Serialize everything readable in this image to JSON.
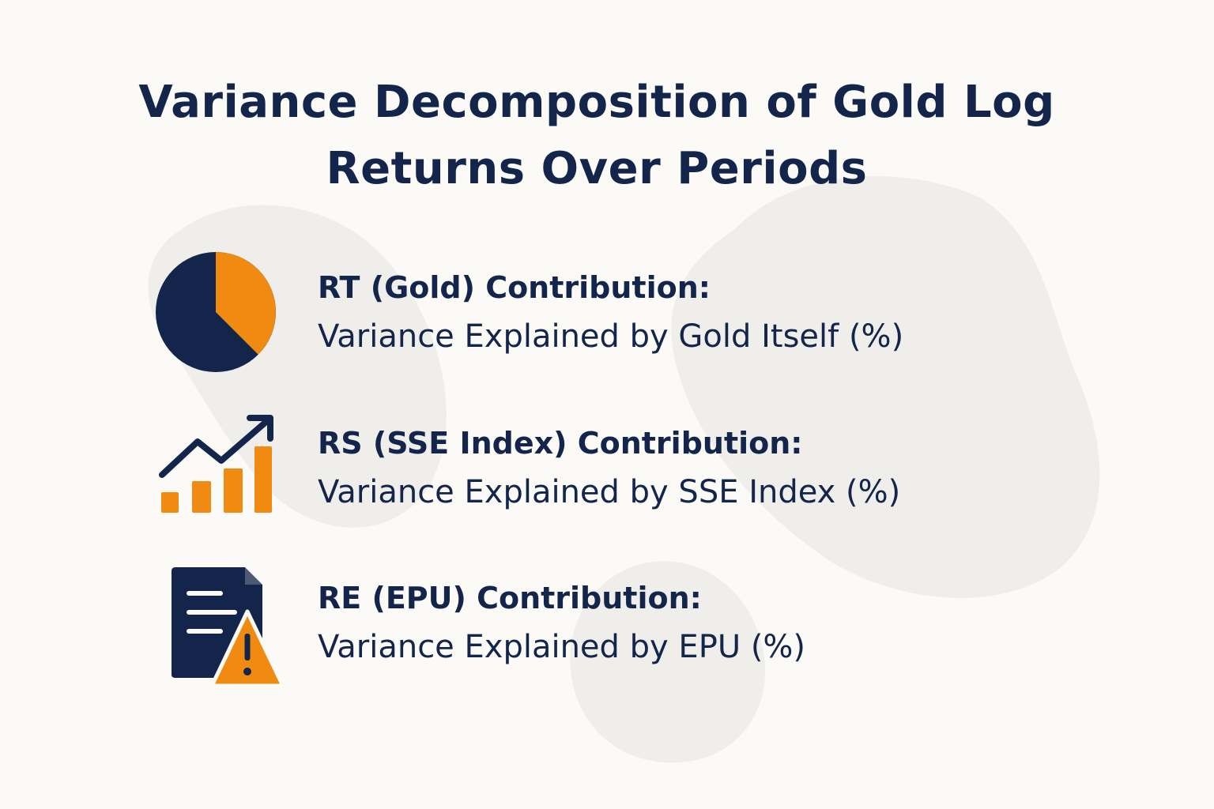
{
  "title": "Variance Decomposition of Gold Log Returns Over Periods",
  "colors": {
    "navy": "#13254a",
    "orange": "#f08a10",
    "background": "#fbfaf7",
    "blob": "#efedea"
  },
  "items": [
    {
      "icon": "pie-chart-icon",
      "heading": "RT (Gold) Contribution:",
      "description": "Variance Explained by Gold Itself (%)"
    },
    {
      "icon": "bar-growth-chart-icon",
      "heading": "RS (SSE Index) Contribution:",
      "description": "Variance Explained by SSE Index (%)"
    },
    {
      "icon": "document-warning-icon",
      "heading": "RE (EPU) Contribution:",
      "description": "Variance Explained by EPU (%)"
    }
  ]
}
